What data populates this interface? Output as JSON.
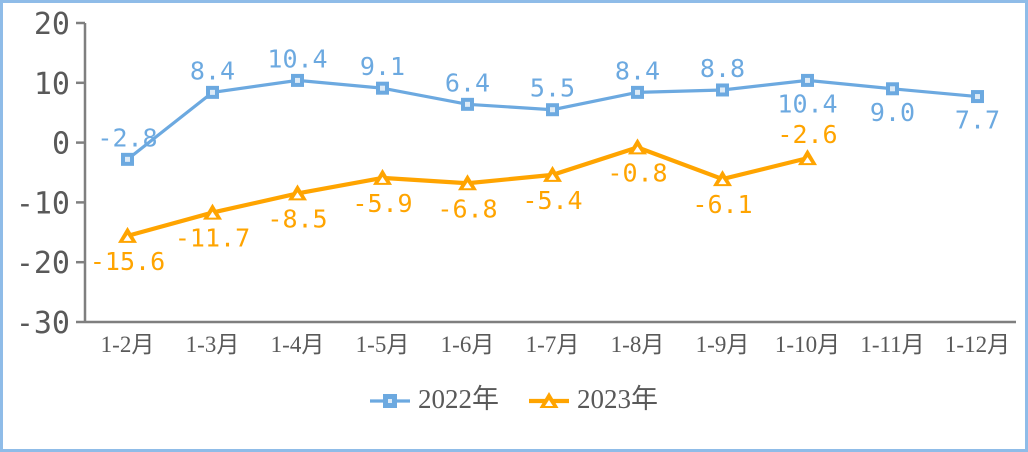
{
  "chart": {
    "background": "#FFFFFF",
    "border_color": "#8FBCE8",
    "axis_color": "#7F7F7F",
    "tick_label_color": "#595959",
    "yticks": [
      20,
      10,
      0,
      -10,
      -20,
      -30
    ]
  },
  "chart_data": {
    "type": "line",
    "title": "",
    "xlabel": "",
    "ylabel": "",
    "ylim": [
      -30,
      20
    ],
    "grid": false,
    "legend_position": "bottom",
    "categories": [
      "1-2月",
      "1-3月",
      "1-4月",
      "1-5月",
      "1-6月",
      "1-7月",
      "1-8月",
      "1-9月",
      "1-10月",
      "1-11月",
      "1-12月"
    ],
    "series": [
      {
        "name": "2022年",
        "color": "#6CA9E0",
        "marker": "square",
        "marker_inner_color": "#DDEBF7",
        "values": [
          -2.8,
          8.4,
          10.4,
          9.1,
          6.4,
          5.5,
          8.4,
          8.8,
          10.4,
          9.0,
          7.7
        ],
        "labels": [
          "-2.8",
          "8.4",
          "10.4",
          "9.1",
          "6.4",
          "5.5",
          "8.4",
          "8.8",
          "10.4",
          "9.0",
          "7.7"
        ],
        "label_pos": [
          "above",
          "above",
          "above",
          "above",
          "above",
          "above",
          "above",
          "above",
          "below",
          "below",
          "below"
        ]
      },
      {
        "name": "2023年",
        "color": "#FFA400",
        "marker": "triangle",
        "marker_inner_color": "#FFFFFF",
        "values": [
          -15.6,
          -11.7,
          -8.5,
          -5.9,
          -6.8,
          -5.4,
          -0.8,
          -6.1,
          -2.6
        ],
        "labels": [
          "-15.6",
          "-11.7",
          "-8.5",
          "-5.9",
          "-6.8",
          "-5.4",
          "-0.8",
          "-6.1",
          "-2.6"
        ],
        "label_pos": [
          "below",
          "below",
          "below",
          "below",
          "below",
          "below",
          "below",
          "below",
          "above"
        ]
      }
    ]
  }
}
